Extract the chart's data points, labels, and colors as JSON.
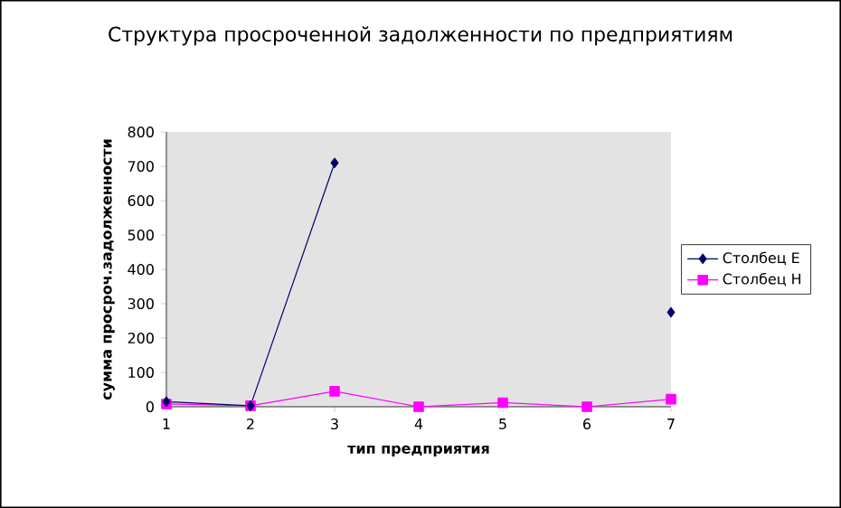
{
  "chart_data": {
    "type": "line",
    "title": "Структура просроченной задолженности по предприятиям",
    "xlabel": "тип предприятия",
    "ylabel": "сумма просроч.задолженности",
    "x": [
      1,
      2,
      3,
      4,
      5,
      6,
      7
    ],
    "series": [
      {
        "name": "Столбец E",
        "color": "#000066",
        "marker": "diamond",
        "values": [
          15,
          3,
          710,
          null,
          null,
          null,
          275
        ]
      },
      {
        "name": "Столбец H",
        "color": "#ff00ff",
        "marker": "square",
        "values": [
          8,
          3,
          45,
          0,
          12,
          0,
          22
        ]
      }
    ],
    "xlim": [
      1,
      7
    ],
    "xticks": [
      1,
      2,
      3,
      4,
      5,
      6,
      7
    ],
    "ylim": [
      0,
      800
    ],
    "yticks": [
      0,
      100,
      200,
      300,
      400,
      500,
      600,
      700,
      800
    ],
    "grid": false,
    "legend": "right"
  }
}
